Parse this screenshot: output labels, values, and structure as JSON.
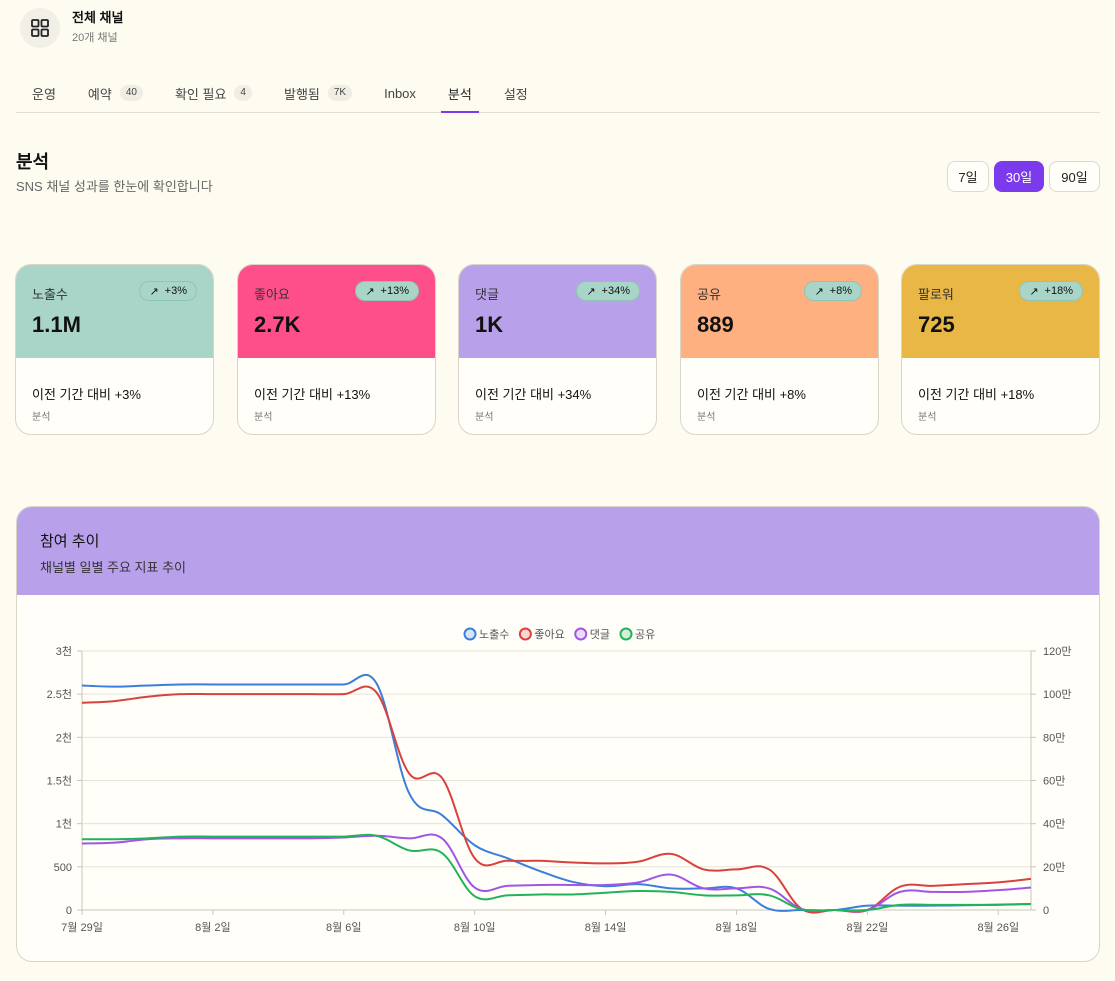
{
  "header": {
    "title": "전체 채널",
    "subtitle": "20개 채널",
    "logo_icon": "grid-icon"
  },
  "tabs": [
    {
      "label": "운영",
      "badge": ""
    },
    {
      "label": "예약",
      "badge": "40"
    },
    {
      "label": "확인 필요",
      "badge": "4"
    },
    {
      "label": "발행됨",
      "badge": "7K"
    },
    {
      "label": "Inbox",
      "badge": ""
    },
    {
      "label": "분석",
      "badge": "",
      "active": true
    },
    {
      "label": "설정",
      "badge": ""
    }
  ],
  "page": {
    "title": "분석",
    "subtitle": "SNS 채널 성과를 한눈에 확인합니다"
  },
  "ranges": [
    {
      "label": "7일",
      "active": false
    },
    {
      "label": "30일",
      "active": true
    },
    {
      "label": "90일",
      "active": false
    }
  ],
  "accent_color": "#7c3aed",
  "cards": [
    {
      "label": "노출수",
      "value": "1.1M",
      "change": "+3%",
      "compare": "이전 기간 대비 +3%",
      "note": "분석",
      "color": "#a8d5c7",
      "icon": "arrow-up-right-icon"
    },
    {
      "label": "좋아요",
      "value": "2.7K",
      "change": "+13%",
      "compare": "이전 기간 대비 +13%",
      "note": "분석",
      "color": "#ff4f8b",
      "icon": "arrow-up-right-icon"
    },
    {
      "label": "댓글",
      "value": "1K",
      "change": "+34%",
      "compare": "이전 기간 대비 +34%",
      "note": "분석",
      "color": "#b8a1ea",
      "icon": "arrow-up-right-icon"
    },
    {
      "label": "공유",
      "value": "889",
      "change": "+8%",
      "compare": "이전 기간 대비 +8%",
      "note": "분석",
      "color": "#ffb081",
      "icon": "arrow-up-right-icon"
    },
    {
      "label": "팔로워",
      "value": "725",
      "change": "+18%",
      "compare": "이전 기간 대비 +18%",
      "note": "분석",
      "color": "#e8b746",
      "icon": "arrow-up-right-icon"
    }
  ],
  "chart_panel": {
    "title": "참여 추이",
    "subtitle": "채널별 일별 주요 지표 추이"
  },
  "chart_data": {
    "type": "line",
    "x": [
      "7월 29일",
      "7월 30일",
      "7월 31일",
      "8월 1일",
      "8월 2일",
      "8월 3일",
      "8월 4일",
      "8월 5일",
      "8월 6일",
      "8월 7일",
      "8월 8일",
      "8월 9일",
      "8월 10일",
      "8월 11일",
      "8월 12일",
      "8월 13일",
      "8월 14일",
      "8월 15일",
      "8월 16일",
      "8월 17일",
      "8월 18일",
      "8월 19일",
      "8월 20일",
      "8월 21일",
      "8월 22일",
      "8월 23일",
      "8월 24일",
      "8월 25일",
      "8월 26일",
      "8월 27일"
    ],
    "x_tick_labels": [
      "7월 29일",
      "8월 2일",
      "8월 6일",
      "8월 10일",
      "8월 14일",
      "8월 18일",
      "8월 22일",
      "8월 26일"
    ],
    "y_left": {
      "min": 0,
      "max": 3000,
      "ticks": [
        0,
        500,
        1000,
        1500,
        2000,
        2500,
        3000
      ],
      "tick_labels": [
        "0",
        "500",
        "1천",
        "1.5천",
        "2천",
        "2.5천",
        "3천"
      ]
    },
    "y_right": {
      "min": 0,
      "max": 1200000,
      "ticks": [
        0,
        200000,
        400000,
        600000,
        800000,
        1000000,
        1200000
      ],
      "tick_labels": [
        "0",
        "20만",
        "40만",
        "60만",
        "80만",
        "100만",
        "120만"
      ]
    },
    "legend_position": "top-center",
    "grid": true,
    "series": [
      {
        "name": "노출수",
        "axis": "right",
        "color": "#3b7fdb",
        "values": [
          1040000,
          1035000,
          1040000,
          1045000,
          1045000,
          1045000,
          1045000,
          1045000,
          1045000,
          1050000,
          540000,
          440000,
          300000,
          240000,
          180000,
          130000,
          110000,
          120000,
          100000,
          100000,
          100000,
          5000,
          0,
          0,
          20000,
          20000,
          20000,
          22000,
          25000,
          28000
        ]
      },
      {
        "name": "좋아요",
        "axis": "left",
        "color": "#d9413f",
        "values": [
          2400,
          2420,
          2470,
          2500,
          2500,
          2500,
          2500,
          2500,
          2500,
          2520,
          1580,
          1530,
          600,
          570,
          570,
          550,
          540,
          560,
          650,
          470,
          470,
          470,
          10,
          0,
          0,
          270,
          280,
          300,
          320,
          360
        ]
      },
      {
        "name": "댓글",
        "axis": "left",
        "color": "#a155e8",
        "values": [
          770,
          780,
          820,
          830,
          830,
          830,
          830,
          830,
          840,
          860,
          830,
          830,
          260,
          280,
          290,
          290,
          290,
          320,
          410,
          250,
          250,
          250,
          10,
          0,
          0,
          210,
          210,
          210,
          230,
          260
        ]
      },
      {
        "name": "공유",
        "axis": "left",
        "color": "#22b35a",
        "values": [
          820,
          820,
          830,
          850,
          850,
          850,
          850,
          850,
          850,
          860,
          690,
          660,
          160,
          170,
          180,
          180,
          200,
          220,
          210,
          170,
          170,
          170,
          5,
          0,
          0,
          60,
          60,
          60,
          60,
          70
        ]
      }
    ]
  }
}
